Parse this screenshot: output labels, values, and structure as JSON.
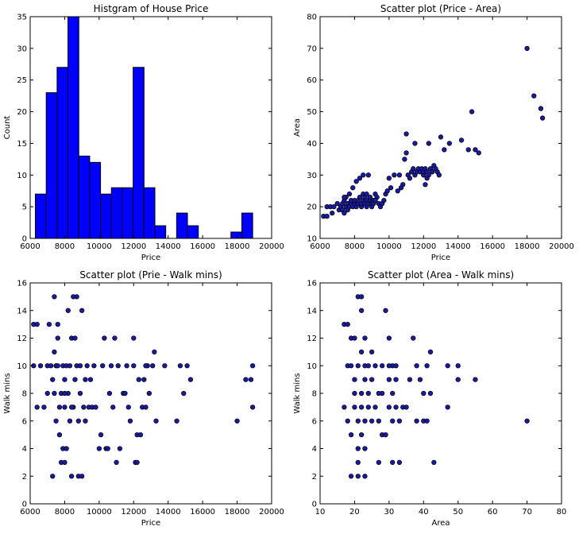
{
  "figure": {
    "background": "#ffffff",
    "mark_color": "#0000ff",
    "point_fill": "#1a1aa0",
    "mark_stroke": "#000000"
  },
  "chart_data": [
    {
      "type": "bar",
      "title": "Histgram of House Price",
      "xlabel": "Price",
      "ylabel": "Count",
      "xlim": [
        6000,
        20000
      ],
      "ylim": [
        0,
        35
      ],
      "xticks": [
        "6000",
        "8000",
        "10000",
        "12000",
        "14000",
        "16000",
        "18000",
        "20000"
      ],
      "yticks": [
        "0",
        "5",
        "10",
        "15",
        "20",
        "25",
        "30",
        "35"
      ],
      "grid": false,
      "bins": [
        {
          "x0": 6300,
          "x1": 6930,
          "count": 7
        },
        {
          "x0": 6930,
          "x1": 7560,
          "count": 23
        },
        {
          "x0": 7560,
          "x1": 8190,
          "count": 27
        },
        {
          "x0": 8190,
          "x1": 8820,
          "count": 35
        },
        {
          "x0": 8820,
          "x1": 9450,
          "count": 13
        },
        {
          "x0": 9450,
          "x1": 10080,
          "count": 12
        },
        {
          "x0": 10080,
          "x1": 10710,
          "count": 7
        },
        {
          "x0": 10710,
          "x1": 11340,
          "count": 8
        },
        {
          "x0": 11340,
          "x1": 11970,
          "count": 8
        },
        {
          "x0": 11970,
          "x1": 12600,
          "count": 27
        },
        {
          "x0": 12600,
          "x1": 13230,
          "count": 8
        },
        {
          "x0": 13230,
          "x1": 13860,
          "count": 2
        },
        {
          "x0": 13860,
          "x1": 14490,
          "count": 0
        },
        {
          "x0": 14490,
          "x1": 15120,
          "count": 4
        },
        {
          "x0": 15120,
          "x1": 15750,
          "count": 2
        },
        {
          "x0": 15750,
          "x1": 16380,
          "count": 0
        },
        {
          "x0": 16380,
          "x1": 17010,
          "count": 0
        },
        {
          "x0": 17010,
          "x1": 17640,
          "count": 0
        },
        {
          "x0": 17640,
          "x1": 18270,
          "count": 1
        },
        {
          "x0": 18270,
          "x1": 18900,
          "count": 4
        }
      ]
    },
    {
      "type": "scatter",
      "title": "Scatter plot (Price - Area)",
      "xlabel": "Price",
      "ylabel": "Area",
      "xlim": [
        6000,
        20000
      ],
      "ylim": [
        10,
        80
      ],
      "xticks": [
        "6000",
        "8000",
        "10000",
        "12000",
        "14000",
        "16000",
        "18000",
        "20000"
      ],
      "yticks": [
        "10",
        "20",
        "30",
        "40",
        "50",
        "60",
        "70",
        "80"
      ],
      "grid": false,
      "points": [
        [
          6200,
          17
        ],
        [
          6400,
          17
        ],
        [
          6400,
          20
        ],
        [
          6600,
          20
        ],
        [
          6700,
          18
        ],
        [
          6800,
          20
        ],
        [
          7000,
          21
        ],
        [
          7100,
          19
        ],
        [
          7200,
          20
        ],
        [
          7300,
          19
        ],
        [
          7300,
          21
        ],
        [
          7400,
          18
        ],
        [
          7400,
          22
        ],
        [
          7500,
          20
        ],
        [
          7500,
          23
        ],
        [
          7600,
          19
        ],
        [
          7600,
          21
        ],
        [
          7700,
          20
        ],
        [
          7700,
          24
        ],
        [
          7800,
          21
        ],
        [
          7800,
          22
        ],
        [
          7900,
          20
        ],
        [
          7900,
          26
        ],
        [
          8000,
          21
        ],
        [
          8000,
          22
        ],
        [
          8100,
          20
        ],
        [
          8100,
          28
        ],
        [
          8200,
          21
        ],
        [
          8200,
          22
        ],
        [
          8300,
          23
        ],
        [
          8300,
          29
        ],
        [
          8400,
          20
        ],
        [
          8400,
          21
        ],
        [
          8500,
          22
        ],
        [
          8500,
          24
        ],
        [
          8600,
          21
        ],
        [
          8600,
          23
        ],
        [
          8700,
          22
        ],
        [
          8700,
          20
        ],
        [
          8800,
          21
        ],
        [
          8800,
          30
        ],
        [
          8900,
          22
        ],
        [
          8900,
          23
        ],
        [
          9000,
          20
        ],
        [
          9000,
          21
        ],
        [
          9100,
          22
        ],
        [
          9200,
          24
        ],
        [
          9300,
          23
        ],
        [
          9400,
          21
        ],
        [
          9500,
          20
        ],
        [
          9600,
          21
        ],
        [
          9700,
          22
        ],
        [
          9800,
          24
        ],
        [
          9900,
          25
        ],
        [
          10000,
          29
        ],
        [
          10100,
          26
        ],
        [
          10300,
          30
        ],
        [
          10500,
          25
        ],
        [
          10600,
          30
        ],
        [
          10700,
          26
        ],
        [
          10800,
          27
        ],
        [
          10900,
          35
        ],
        [
          11000,
          37
        ],
        [
          11100,
          30
        ],
        [
          11200,
          29
        ],
        [
          11300,
          31
        ],
        [
          11400,
          32
        ],
        [
          11500,
          30
        ],
        [
          11600,
          31
        ],
        [
          11700,
          32
        ],
        [
          11800,
          31
        ],
        [
          11900,
          32
        ],
        [
          12000,
          30
        ],
        [
          12000,
          31
        ],
        [
          12100,
          32
        ],
        [
          12100,
          27
        ],
        [
          12200,
          29
        ],
        [
          12200,
          31
        ],
        [
          12300,
          30
        ],
        [
          12400,
          32
        ],
        [
          12500,
          31
        ],
        [
          12600,
          33
        ],
        [
          12700,
          32
        ],
        [
          12800,
          31
        ],
        [
          12900,
          30
        ],
        [
          13000,
          42
        ],
        [
          13200,
          38
        ],
        [
          13500,
          40
        ],
        [
          14200,
          41
        ],
        [
          14600,
          38
        ],
        [
          14800,
          50
        ],
        [
          15000,
          38
        ],
        [
          15200,
          37
        ],
        [
          18000,
          70
        ],
        [
          18400,
          55
        ],
        [
          18800,
          51
        ],
        [
          18900,
          48
        ],
        [
          11000,
          43
        ],
        [
          11500,
          40
        ],
        [
          12300,
          40
        ],
        [
          8500,
          30
        ],
        [
          9100,
          21
        ],
        [
          9200,
          22
        ],
        [
          8700,
          24
        ],
        [
          7400,
          23
        ]
      ]
    },
    {
      "type": "scatter",
      "title": "Scatter plot (Prie - Walk mins)",
      "xlabel": "Price",
      "ylabel": "Walk mins",
      "xlim": [
        6000,
        20000
      ],
      "ylim": [
        0,
        16
      ],
      "xticks": [
        "6000",
        "8000",
        "10000",
        "12000",
        "14000",
        "16000",
        "18000",
        "20000"
      ],
      "yticks": [
        "0",
        "2",
        "4",
        "6",
        "8",
        "10",
        "12",
        "14",
        "16"
      ],
      "grid": false,
      "points": [
        [
          6200,
          10
        ],
        [
          6200,
          13
        ],
        [
          6400,
          13
        ],
        [
          6400,
          7
        ],
        [
          6600,
          10
        ],
        [
          6800,
          7
        ],
        [
          7000,
          8
        ],
        [
          7000,
          10
        ],
        [
          7100,
          13
        ],
        [
          7200,
          10
        ],
        [
          7300,
          2
        ],
        [
          7300,
          9
        ],
        [
          7400,
          15
        ],
        [
          7400,
          8
        ],
        [
          7400,
          11
        ],
        [
          7500,
          6
        ],
        [
          7500,
          10
        ],
        [
          7600,
          13
        ],
        [
          7600,
          12
        ],
        [
          7700,
          5
        ],
        [
          7700,
          7
        ],
        [
          7800,
          3
        ],
        [
          7800,
          8
        ],
        [
          7900,
          4
        ],
        [
          7900,
          10
        ],
        [
          8000,
          3
        ],
        [
          8000,
          7
        ],
        [
          8000,
          9
        ],
        [
          8100,
          4
        ],
        [
          8100,
          10
        ],
        [
          8200,
          8
        ],
        [
          8200,
          14
        ],
        [
          8300,
          6
        ],
        [
          8300,
          10
        ],
        [
          8400,
          2
        ],
        [
          8400,
          12
        ],
        [
          8500,
          15
        ],
        [
          8500,
          7
        ],
        [
          8600,
          9
        ],
        [
          8600,
          12
        ],
        [
          8700,
          10
        ],
        [
          8700,
          15
        ],
        [
          8800,
          2
        ],
        [
          8800,
          6
        ],
        [
          8900,
          8
        ],
        [
          8900,
          10
        ],
        [
          9000,
          2
        ],
        [
          9000,
          14
        ],
        [
          9100,
          7
        ],
        [
          9200,
          6
        ],
        [
          9300,
          10
        ],
        [
          9400,
          7
        ],
        [
          9500,
          9
        ],
        [
          9600,
          7
        ],
        [
          9700,
          10
        ],
        [
          9800,
          7
        ],
        [
          10000,
          4
        ],
        [
          10100,
          5
        ],
        [
          10200,
          10
        ],
        [
          10300,
          12
        ],
        [
          10400,
          4
        ],
        [
          10500,
          4
        ],
        [
          10600,
          8
        ],
        [
          10700,
          10
        ],
        [
          10800,
          7
        ],
        [
          10900,
          12
        ],
        [
          11000,
          3
        ],
        [
          11100,
          10
        ],
        [
          11200,
          4
        ],
        [
          11400,
          8
        ],
        [
          11500,
          8
        ],
        [
          11600,
          10
        ],
        [
          11700,
          7
        ],
        [
          11800,
          6
        ],
        [
          12000,
          12
        ],
        [
          12000,
          10
        ],
        [
          12100,
          3
        ],
        [
          12200,
          3
        ],
        [
          12200,
          5
        ],
        [
          12300,
          9
        ],
        [
          12400,
          5
        ],
        [
          12500,
          7
        ],
        [
          12600,
          9
        ],
        [
          12700,
          7
        ],
        [
          12800,
          10
        ],
        [
          12900,
          8
        ],
        [
          13100,
          10
        ],
        [
          13200,
          11
        ],
        [
          13300,
          6
        ],
        [
          13800,
          10
        ],
        [
          14500,
          6
        ],
        [
          14700,
          10
        ],
        [
          14900,
          8
        ],
        [
          15100,
          10
        ],
        [
          15300,
          9
        ],
        [
          18000,
          6
        ],
        [
          18500,
          9
        ],
        [
          18800,
          9
        ],
        [
          18900,
          10
        ],
        [
          18900,
          7
        ],
        [
          9200,
          9
        ],
        [
          8400,
          7
        ],
        [
          7600,
          10
        ],
        [
          8000,
          8
        ],
        [
          12700,
          10
        ]
      ]
    },
    {
      "type": "scatter",
      "title": "Scatter plot (Area - Walk mins)",
      "xlabel": "Area",
      "ylabel": "Walk mins",
      "xlim": [
        10,
        80
      ],
      "ylim": [
        0,
        16
      ],
      "xticks": [
        "10",
        "20",
        "30",
        "40",
        "50",
        "60",
        "70",
        "80"
      ],
      "yticks": [
        "0",
        "2",
        "4",
        "6",
        "8",
        "10",
        "12",
        "14",
        "16"
      ],
      "grid": false,
      "points": [
        [
          17,
          7
        ],
        [
          17,
          13
        ],
        [
          18,
          6
        ],
        [
          18,
          10
        ],
        [
          18,
          13
        ],
        [
          19,
          2
        ],
        [
          19,
          5
        ],
        [
          19,
          10
        ],
        [
          19,
          12
        ],
        [
          20,
          7
        ],
        [
          20,
          8
        ],
        [
          20,
          9
        ],
        [
          20,
          12
        ],
        [
          21,
          2
        ],
        [
          21,
          3
        ],
        [
          21,
          4
        ],
        [
          21,
          6
        ],
        [
          21,
          10
        ],
        [
          21,
          15
        ],
        [
          22,
          5
        ],
        [
          22,
          7
        ],
        [
          22,
          8
        ],
        [
          22,
          11
        ],
        [
          22,
          14
        ],
        [
          22,
          15
        ],
        [
          23,
          2
        ],
        [
          23,
          4
        ],
        [
          23,
          6
        ],
        [
          23,
          9
        ],
        [
          23,
          10
        ],
        [
          23,
          12
        ],
        [
          24,
          7
        ],
        [
          24,
          8
        ],
        [
          24,
          10
        ],
        [
          25,
          6
        ],
        [
          25,
          9
        ],
        [
          25,
          11
        ],
        [
          26,
          7
        ],
        [
          26,
          10
        ],
        [
          27,
          3
        ],
        [
          27,
          6
        ],
        [
          27,
          8
        ],
        [
          28,
          5
        ],
        [
          28,
          10
        ],
        [
          29,
          5
        ],
        [
          29,
          14
        ],
        [
          30,
          7
        ],
        [
          30,
          9
        ],
        [
          30,
          12
        ],
        [
          31,
          3
        ],
        [
          31,
          6
        ],
        [
          31,
          8
        ],
        [
          31,
          10
        ],
        [
          32,
          7
        ],
        [
          32,
          9
        ],
        [
          32,
          10
        ],
        [
          33,
          3
        ],
        [
          33,
          6
        ],
        [
          34,
          7
        ],
        [
          35,
          7
        ],
        [
          36,
          9
        ],
        [
          37,
          12
        ],
        [
          38,
          10
        ],
        [
          38,
          6
        ],
        [
          39,
          9
        ],
        [
          40,
          6
        ],
        [
          40,
          8
        ],
        [
          41,
          6
        ],
        [
          41,
          10
        ],
        [
          42,
          8
        ],
        [
          42,
          11
        ],
        [
          43,
          3
        ],
        [
          47,
          7
        ],
        [
          47,
          10
        ],
        [
          50,
          10
        ],
        [
          50,
          9
        ],
        [
          55,
          9
        ],
        [
          70,
          6
        ],
        [
          30,
          10
        ],
        [
          28,
          8
        ]
      ]
    }
  ]
}
